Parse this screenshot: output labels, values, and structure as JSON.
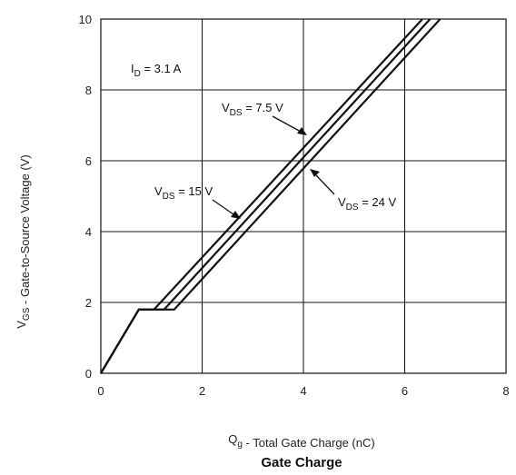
{
  "chart_data": {
    "type": "line",
    "title": "Gate Charge",
    "xlabel": "Q_g - Total Gate Charge (nC)",
    "ylabel": "V_GS - Gate-to-Source Voltage (V)",
    "xlim": [
      0,
      8
    ],
    "ylim": [
      0,
      10
    ],
    "x_ticks": [
      0,
      2,
      4,
      6,
      8
    ],
    "y_ticks": [
      0,
      2,
      4,
      6,
      8,
      10
    ],
    "grid": true,
    "annotations": [
      {
        "id": "id",
        "main": "I",
        "sub": "D",
        "rest": " = 3.1 A"
      },
      {
        "id": "vds75",
        "main": "V",
        "sub": "DS",
        "rest": " = 7.5 V"
      },
      {
        "id": "vds15",
        "main": "V",
        "sub": "DS",
        "rest": " = 15 V"
      },
      {
        "id": "vds24",
        "main": "V",
        "sub": "DS",
        "rest": " = 24 V"
      }
    ],
    "series": [
      {
        "name": "V_DS = 7.5 V",
        "points": [
          [
            0,
            0
          ],
          [
            0.75,
            1.8
          ],
          [
            1.05,
            1.8
          ],
          [
            6.35,
            10
          ]
        ]
      },
      {
        "name": "V_DS = 15 V",
        "points": [
          [
            0,
            0
          ],
          [
            0.75,
            1.8
          ],
          [
            1.25,
            1.8
          ],
          [
            6.5,
            10
          ]
        ]
      },
      {
        "name": "V_DS = 24 V",
        "points": [
          [
            0,
            0
          ],
          [
            0.75,
            1.8
          ],
          [
            1.45,
            1.8
          ],
          [
            6.7,
            10
          ]
        ]
      }
    ]
  }
}
